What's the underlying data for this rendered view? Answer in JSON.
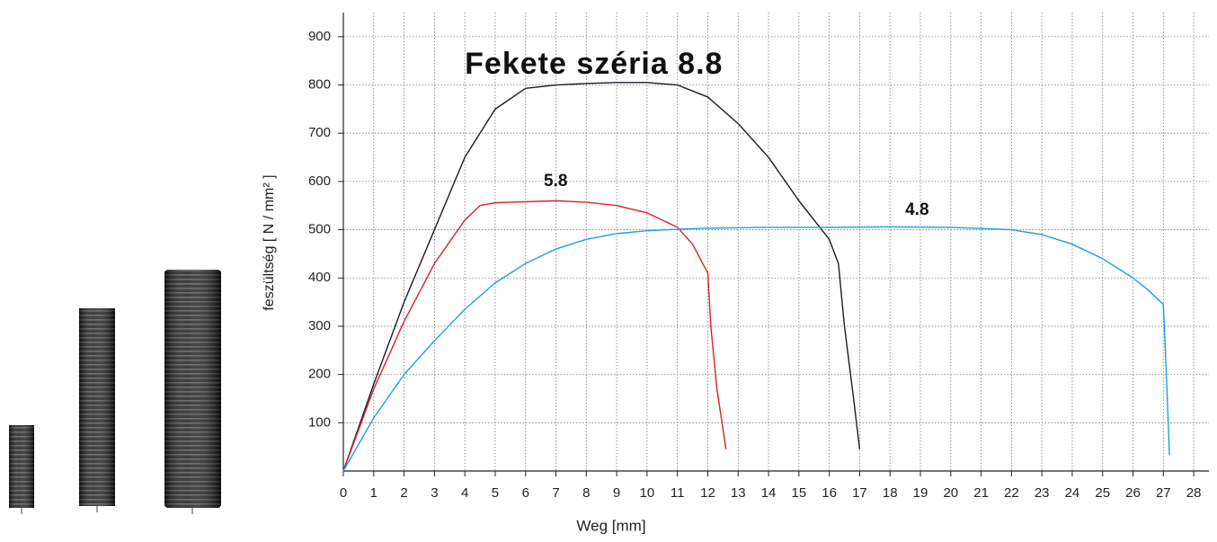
{
  "chart_data": {
    "type": "line",
    "xlabel": "Weg  [mm]",
    "ylabel": "feszültség [ N / mm² ]",
    "xlim": [
      0,
      28.5
    ],
    "ylim": [
      0,
      950
    ],
    "xticks": [
      0,
      1,
      2,
      3,
      4,
      5,
      6,
      7,
      8,
      9,
      10,
      11,
      12,
      13,
      14,
      15,
      16,
      17,
      18,
      19,
      20,
      21,
      22,
      23,
      24,
      25,
      26,
      27,
      28
    ],
    "yticks": [
      100,
      200,
      300,
      400,
      500,
      600,
      700,
      800,
      900
    ],
    "grid": true,
    "annotations": [
      {
        "text": "Fekete széria 8.8",
        "x": 4.0,
        "y": 840
      },
      {
        "text": "5.8",
        "x": 6.6,
        "y": 600
      },
      {
        "text": "4.8",
        "x": 18.5,
        "y": 540
      }
    ],
    "series": [
      {
        "color": "#1b1b2b",
        "x": [
          0,
          1,
          2,
          3,
          4,
          5,
          6,
          7,
          8,
          9,
          10,
          11,
          12,
          13,
          14,
          15,
          16,
          16.3,
          16.5,
          16.8,
          17
        ],
        "values": [
          0,
          180,
          350,
          500,
          650,
          750,
          793,
          800,
          803,
          805,
          805,
          800,
          775,
          720,
          650,
          560,
          480,
          430,
          300,
          150,
          45
        ]
      },
      {
        "color": "#d6202e",
        "x": [
          0,
          1,
          2,
          3,
          4,
          4.5,
          5,
          6,
          7,
          8,
          9,
          10,
          11,
          11.5,
          12,
          12.1,
          12.3,
          12.6
        ],
        "values": [
          0,
          170,
          310,
          430,
          520,
          550,
          556,
          558,
          560,
          557,
          550,
          535,
          505,
          470,
          410,
          300,
          170,
          45
        ]
      },
      {
        "color": "#1aa3d8",
        "x": [
          0,
          1,
          2,
          3,
          4,
          5,
          6,
          7,
          8,
          9,
          10,
          11,
          12,
          14,
          16,
          18,
          20,
          22,
          23,
          24,
          25,
          26,
          26.5,
          27,
          27.1,
          27.2
        ],
        "values": [
          0,
          110,
          200,
          270,
          335,
          390,
          430,
          460,
          480,
          492,
          498,
          501,
          503,
          505,
          505,
          506,
          505,
          500,
          490,
          470,
          440,
          400,
          375,
          345,
          200,
          33
        ]
      }
    ]
  }
}
